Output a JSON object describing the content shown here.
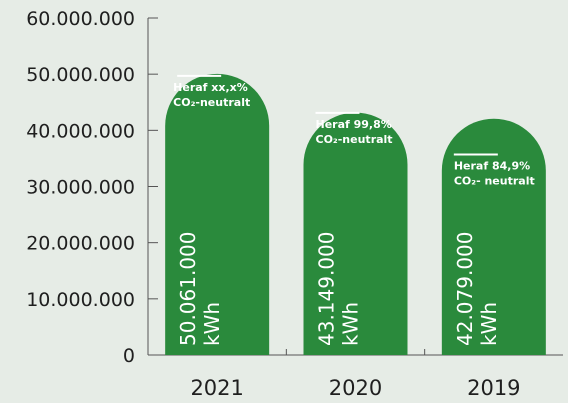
{
  "chart_data": {
    "type": "bar",
    "categories": [
      "2021",
      "2020",
      "2019"
    ],
    "values": [
      50061000,
      43149000,
      42079000
    ],
    "value_labels": [
      "50.061.000",
      "43.149.000",
      "42.079.000"
    ],
    "unit_label": "kWh",
    "notes": [
      {
        "line1": "Heraf xx,x%",
        "line2": "CO₂-neutralt",
        "marker_value": 49700000
      },
      {
        "line1": "Heraf 99,8%",
        "line2": "CO₂-neutralt",
        "marker_value": 43100000
      },
      {
        "line1": "Heraf 84,9%",
        "line2": "CO₂- neutralt",
        "marker_value": 35700000
      }
    ],
    "y_ticks": [
      "0",
      "10.000.000",
      "20.000.000",
      "30.000.000",
      "40.000.000",
      "50.000.000",
      "60.000.000"
    ],
    "ylim": [
      0,
      60000000
    ],
    "xlabel": "",
    "ylabel": "",
    "title": "",
    "grid": false,
    "colors": {
      "bar": "#2a8a3c",
      "axis": "#555555",
      "text": "#1f1f1f",
      "label": "#ffffff",
      "background": "#e6ece6"
    }
  }
}
